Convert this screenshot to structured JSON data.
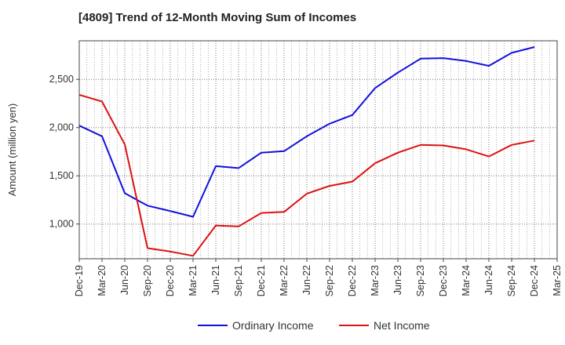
{
  "chart_data": {
    "type": "line",
    "title": "[4809]  Trend of 12-Month Moving Sum of Incomes",
    "xlabel": "",
    "ylabel": "Amount (million yen)",
    "ylim": [
      640,
      2900
    ],
    "yticks": [
      1000,
      1500,
      2000,
      2500
    ],
    "ytick_labels": [
      "1,000",
      "1,500",
      "2,000",
      "2,500"
    ],
    "grid": true,
    "legend_position": "bottom-center",
    "categories": [
      "Dec-19",
      "Mar-20",
      "Jun-20",
      "Sep-20",
      "Dec-20",
      "Mar-21",
      "Jun-21",
      "Sep-21",
      "Dec-21",
      "Mar-22",
      "Jun-22",
      "Sep-22",
      "Dec-22",
      "Mar-23",
      "Jun-23",
      "Sep-23",
      "Dec-23",
      "Mar-24",
      "Jun-24",
      "Sep-24",
      "Dec-24",
      "Mar-25"
    ],
    "series": [
      {
        "name": "Ordinary Income",
        "color": "#1111dd",
        "values": [
          2020,
          1910,
          1320,
          1190,
          1135,
          1075,
          1600,
          1580,
          1740,
          1755,
          1910,
          2040,
          2130,
          2410,
          2570,
          2715,
          2720,
          2690,
          2640,
          2775,
          2835,
          null
        ]
      },
      {
        "name": "Net Income",
        "color": "#dd1111",
        "values": [
          2340,
          2270,
          1825,
          750,
          715,
          670,
          985,
          975,
          1115,
          1125,
          1315,
          1395,
          1440,
          1630,
          1740,
          1820,
          1815,
          1775,
          1700,
          1820,
          1865,
          null
        ]
      }
    ]
  }
}
